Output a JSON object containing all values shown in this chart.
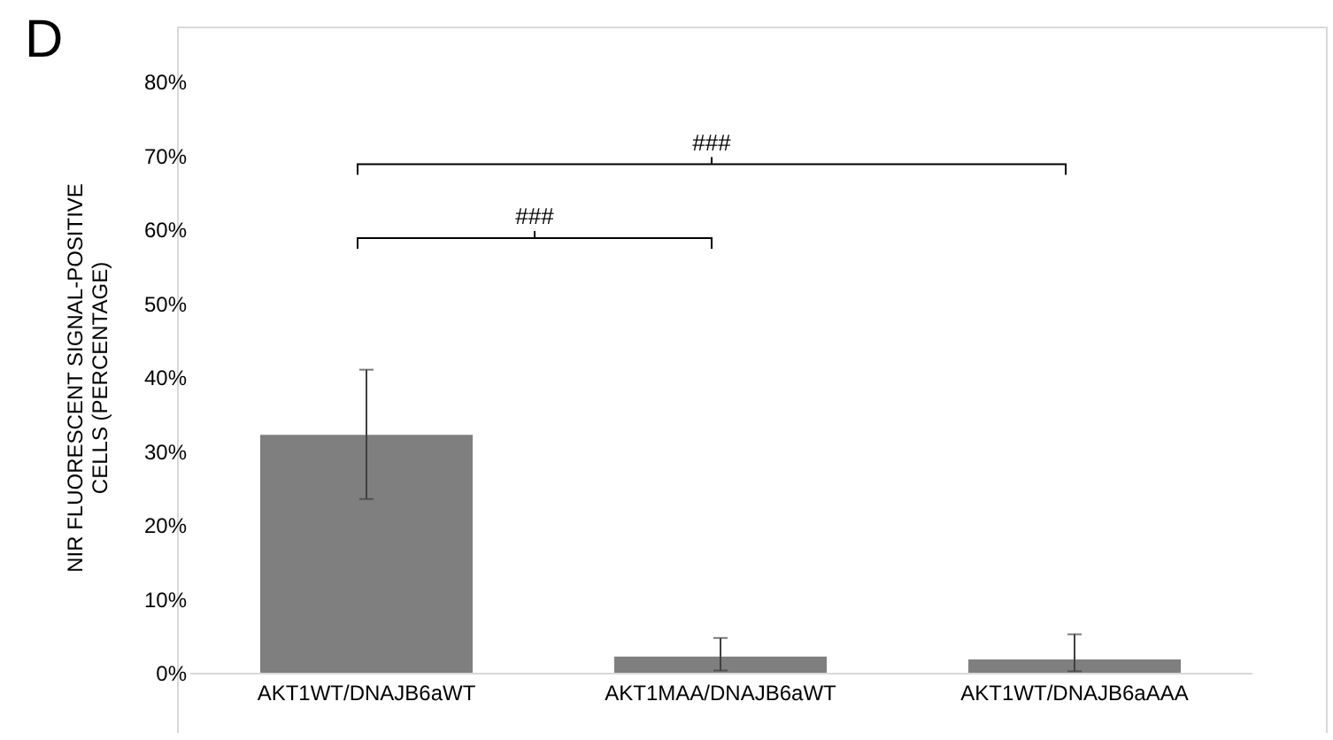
{
  "chart_data": {
    "type": "bar",
    "ylabel": "NIR FLUORESCENT SIGNAL-POSITIVE CELLS (PERCENTAGE)",
    "categories": [
      "AKT1WT/DNAJB6aWT",
      "AKT1MAA/DNAJB6aWT",
      "AKT1WT/DNAJB6aAAA"
    ],
    "values": [
      32.2,
      2.2,
      1.8
    ],
    "color": "#7f7f7f",
    "errors": [
      [
        23.5,
        41
      ],
      [
        0.3,
        4.7
      ],
      [
        0.2,
        5.2
      ]
    ],
    "ylim": [
      0,
      80
    ],
    "yticks": [
      {
        "value": 0,
        "label": "0%"
      },
      {
        "value": 10,
        "label": "10%"
      },
      {
        "value": 20,
        "label": "20%"
      },
      {
        "value": 30,
        "label": "30%"
      },
      {
        "value": 40,
        "label": "40%"
      },
      {
        "value": 50,
        "label": "50%"
      },
      {
        "value": 60,
        "label": "60%"
      },
      {
        "value": 70,
        "label": "70%"
      },
      {
        "value": 80,
        "label": "80%"
      }
    ],
    "annotations": [
      "D",
      "###",
      "###"
    ]
  }
}
